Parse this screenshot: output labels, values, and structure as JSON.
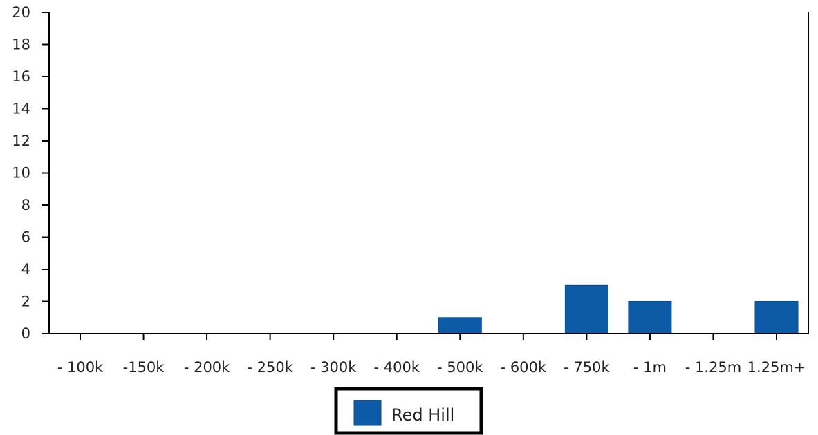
{
  "chart_data": {
    "type": "bar",
    "categories": [
      "- 100k",
      "-150k",
      "- 200k",
      "- 250k",
      "- 300k",
      "- 400k",
      "- 500k",
      "- 600k",
      "- 750k",
      "- 1m",
      "- 1.25m",
      "1.25m+"
    ],
    "series": [
      {
        "name": "Red Hill",
        "values": [
          0,
          0,
          0,
          0,
          0,
          0,
          1,
          0,
          3,
          2,
          0,
          2
        ],
        "color": "#0d5aa7"
      }
    ],
    "y_ticks": [
      "0",
      "2",
      "4",
      "6",
      "8",
      "10",
      "12",
      "14",
      "16",
      "18",
      "20"
    ],
    "ylim": [
      0,
      20
    ],
    "grid": false,
    "legend_position": "bottom-center",
    "title": "",
    "xlabel": "",
    "ylabel": ""
  }
}
